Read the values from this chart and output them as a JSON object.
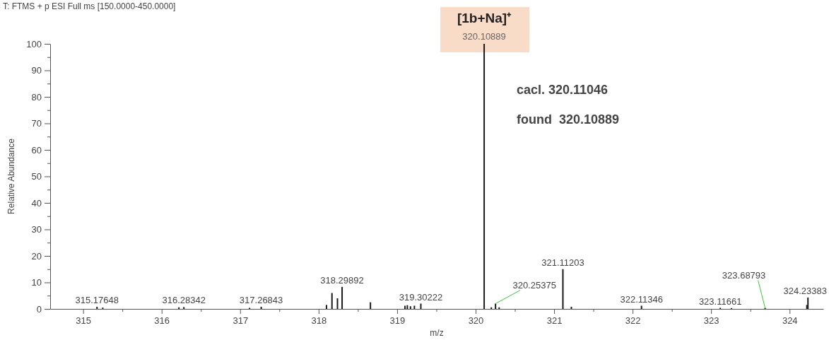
{
  "chart_data": {
    "type": "bar",
    "title": "T: FTMS + p ESI Full ms [150.0000-450.0000]",
    "xlabel": "m/z",
    "ylabel": "Relative Abundance",
    "x": [
      315.17648,
      315.25,
      316.22,
      316.28342,
      317.12,
      317.26843,
      318.1,
      318.17,
      318.24,
      318.29892,
      318.66,
      319.1,
      319.13,
      319.17,
      319.22,
      319.30222,
      320.10889,
      320.2,
      320.25375,
      320.3,
      321.11203,
      321.22,
      322.11346,
      323.11661,
      323.26,
      323.68793,
      324.22,
      324.23383
    ],
    "values": [
      0.8,
      0.5,
      0.6,
      0.7,
      0.4,
      0.8,
      1.5,
      6,
      4,
      8.3,
      2.5,
      1.2,
      1.4,
      1,
      1.2,
      2,
      100,
      0.6,
      2,
      0.6,
      15,
      0.8,
      1.2,
      0.4,
      0.3,
      0.4,
      1.5,
      4.3
    ],
    "color": "#1a1a1a",
    "xlim": [
      314.58,
      324.43
    ],
    "xticks": [
      315,
      {
        "value": 315.5,
        "label": null
      },
      316,
      {
        "value": 316.5,
        "label": null
      },
      317,
      {
        "value": 317.5,
        "label": null
      },
      318,
      {
        "value": 318.5,
        "label": null
      },
      319,
      {
        "value": 319.5,
        "label": null
      },
      320,
      {
        "value": 320.5,
        "label": null
      },
      321,
      {
        "value": 321.5,
        "label": null
      },
      322,
      {
        "value": 322.5,
        "label": null
      },
      323,
      {
        "value": 323.5,
        "label": null
      },
      324
    ],
    "ylim": [
      0,
      100
    ],
    "yticks": [
      0,
      {
        "value": 5,
        "label": null
      },
      10,
      {
        "value": 15,
        "label": null
      },
      20,
      {
        "value": 25,
        "label": null
      },
      30,
      {
        "value": 35,
        "label": null
      },
      40,
      {
        "value": 45,
        "label": null
      },
      50,
      {
        "value": 55,
        "label": null
      },
      60,
      {
        "value": 65,
        "label": null
      },
      70,
      {
        "value": 75,
        "label": null
      },
      80,
      {
        "value": 85,
        "label": null
      },
      90,
      {
        "value": 95,
        "label": null
      },
      100
    ],
    "grid": false,
    "annotations": [
      {
        "text": "[1b+Na]⁺",
        "x": 320.10889,
        "y": 100
      },
      {
        "text": "320.10889",
        "x": 320.10889,
        "y": 100
      },
      {
        "text": "315.17648",
        "x": 315.17648,
        "y": 0.8
      },
      {
        "text": "316.28342",
        "x": 316.28342,
        "y": 0.7
      },
      {
        "text": "317.26843",
        "x": 317.26843,
        "y": 0.8
      },
      {
        "text": "318.29892",
        "x": 318.29892,
        "y": 8.3
      },
      {
        "text": "319.30222",
        "x": 319.30222,
        "y": 2
      },
      {
        "text": "320.25375",
        "x": 320.25375,
        "y": 2
      },
      {
        "text": "321.11203",
        "x": 321.11203,
        "y": 15
      },
      {
        "text": "322.11346",
        "x": 322.11346,
        "y": 1.2
      },
      {
        "text": "323.11661",
        "x": 323.11661,
        "y": 0.4
      },
      {
        "text": "323.68793",
        "x": 323.68793,
        "y": 0.4
      },
      {
        "text": "324.23383",
        "x": 324.23383,
        "y": 4.3
      },
      "cacl. 320.11046",
      "found  320.10889"
    ]
  }
}
